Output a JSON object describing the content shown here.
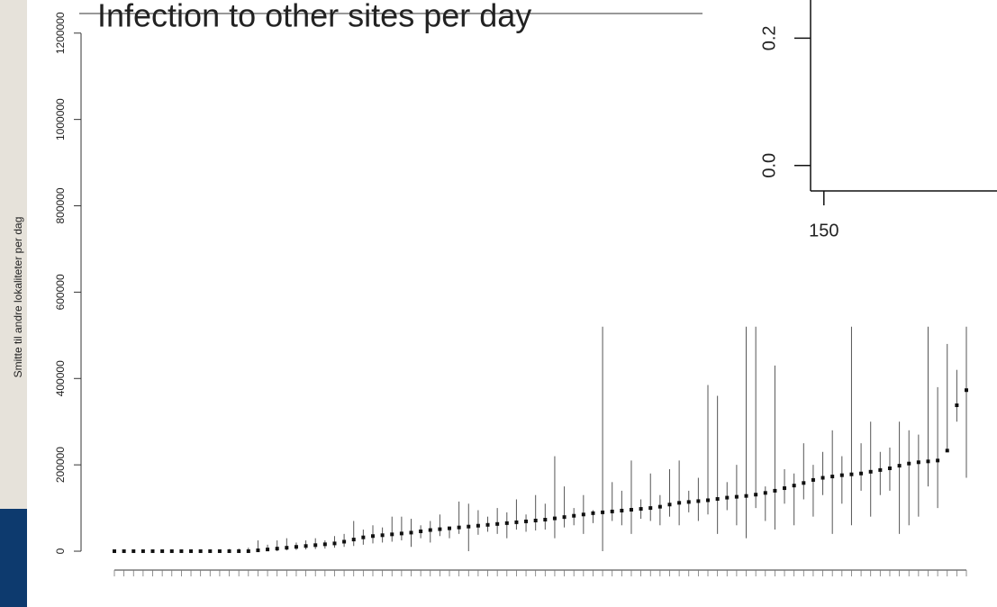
{
  "chart_data": [
    {
      "type": "errorbar",
      "title": "Infection to other sites per day",
      "y_label": "Smitte til andre lokaliteter per dag",
      "ylim": [
        -45000,
        1260000
      ],
      "yticks": [
        0,
        200000,
        400000,
        600000,
        800000,
        1000000,
        1200000
      ],
      "color": "#111111",
      "categories": [
        null,
        null,
        null,
        null,
        null,
        null,
        null,
        null,
        null,
        null,
        null,
        null,
        null,
        null,
        null,
        null,
        null,
        null,
        null,
        null,
        null,
        null,
        null,
        null,
        null,
        null,
        null,
        null,
        null,
        null,
        null,
        null,
        null,
        null,
        null,
        null,
        null,
        null,
        null,
        null,
        null,
        null,
        null,
        null,
        null,
        null,
        null,
        null,
        null,
        null,
        null,
        null,
        null,
        null,
        null,
        null,
        null,
        null,
        null,
        null,
        null,
        null,
        null,
        null,
        null,
        null,
        null,
        null,
        null,
        null,
        null,
        null,
        null,
        null,
        null,
        null,
        null,
        null,
        null,
        null,
        null,
        null,
        null,
        null,
        null,
        null,
        null,
        null,
        null,
        null
      ],
      "values": [
        0,
        0,
        0,
        0,
        0,
        0,
        0,
        0,
        0,
        0,
        0,
        0,
        0,
        0,
        0,
        2000,
        4000,
        6000,
        8000,
        10000,
        12000,
        14000,
        16000,
        18000,
        22000,
        27000,
        32000,
        35000,
        37000,
        39000,
        41000,
        43000,
        46000,
        49000,
        51000,
        53000,
        55000,
        57000,
        59000,
        61000,
        63000,
        65000,
        67000,
        69000,
        71000,
        73000,
        76000,
        79000,
        82000,
        85000,
        88000,
        90000,
        92000,
        94000,
        96000,
        98000,
        100000,
        103000,
        108000,
        112000,
        114000,
        116000,
        118000,
        121000,
        124000,
        126000,
        128000,
        131000,
        135000,
        140000,
        146000,
        152000,
        158000,
        165000,
        170000,
        173000,
        176000,
        178000,
        180000,
        184000,
        188000,
        192000,
        198000,
        203000,
        206000,
        208000,
        210000,
        233000,
        338000,
        373000
      ],
      "lower": [
        0,
        0,
        0,
        0,
        0,
        0,
        0,
        0,
        0,
        0,
        0,
        0,
        0,
        0,
        0,
        0,
        0,
        0,
        2000,
        3000,
        4000,
        5000,
        6000,
        8000,
        10000,
        12000,
        15000,
        18000,
        20000,
        22000,
        25000,
        10000,
        30000,
        20000,
        35000,
        30000,
        40000,
        0,
        38000,
        45000,
        40000,
        30000,
        50000,
        45000,
        48000,
        50000,
        30000,
        55000,
        60000,
        40000,
        65000,
        0,
        70000,
        60000,
        40000,
        75000,
        70000,
        60000,
        80000,
        60000,
        90000,
        70000,
        85000,
        40000,
        95000,
        60000,
        30000,
        100000,
        70000,
        50000,
        110000,
        60000,
        120000,
        80000,
        130000,
        40000,
        110000,
        60000,
        140000,
        80000,
        130000,
        140000,
        40000,
        60000,
        80000,
        150000,
        100000,
        230000,
        300000,
        170000
      ],
      "upper": [
        2000,
        2000,
        2000,
        2000,
        2000,
        2000,
        2000,
        2000,
        3000,
        3000,
        3000,
        4000,
        5000,
        6000,
        8000,
        25000,
        15000,
        25000,
        30000,
        20000,
        25000,
        30000,
        25000,
        35000,
        40000,
        70000,
        50000,
        60000,
        55000,
        80000,
        80000,
        75000,
        60000,
        70000,
        85000,
        50000,
        115000,
        110000,
        95000,
        80000,
        100000,
        90000,
        120000,
        85000,
        130000,
        110000,
        220000,
        150000,
        100000,
        130000,
        95000,
        520000,
        160000,
        140000,
        210000,
        120000,
        180000,
        130000,
        190000,
        210000,
        140000,
        170000,
        385000,
        360000,
        160000,
        200000,
        520000,
        520000,
        150000,
        430000,
        190000,
        180000,
        250000,
        200000,
        230000,
        280000,
        220000,
        520000,
        250000,
        300000,
        230000,
        240000,
        300000,
        280000,
        270000,
        520000,
        380000,
        480000,
        420000,
        520000
      ]
    },
    {
      "type": "inset",
      "xlim": [
        148,
        176
      ],
      "xticks": [
        150
      ],
      "ylim": [
        -0.04,
        0.26
      ],
      "yticks": [
        {
          "value": 0,
          "label": "0.0"
        },
        {
          "value": 0.2,
          "label": "0.2"
        }
      ]
    }
  ]
}
